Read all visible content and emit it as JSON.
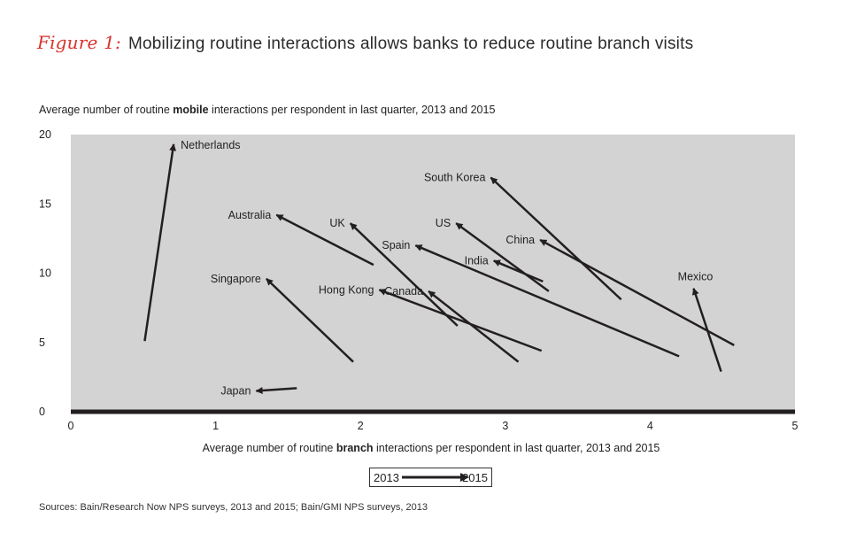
{
  "header": {
    "figure_label": "Figure 1:",
    "title": "Mobilizing routine interactions allows banks to reduce routine branch visits"
  },
  "legend": {
    "from": "2013",
    "to": "2015"
  },
  "source": "Sources: Bain/Research Now NPS surveys, 2013 and 2015; Bain/GMI NPS surveys, 2013",
  "chart_data": {
    "type": "arrow-scatter",
    "title": "Mobilizing routine interactions allows banks to reduce routine branch visits",
    "ylabel_parts": [
      "Average number of routine ",
      "mobile",
      " interactions per respondent in last quarter, 2013 and 2015"
    ],
    "xlabel_parts": [
      "Average number of routine ",
      "branch",
      " interactions per respondent in last quarter, 2013 and 2015"
    ],
    "xlim": [
      0,
      5
    ],
    "ylim": [
      0,
      20
    ],
    "xticks": [
      "0",
      "1",
      "2",
      "3",
      "4",
      "5"
    ],
    "yticks": [
      "0",
      "5",
      "10",
      "15",
      "20"
    ],
    "grid": false,
    "background": "#d3d3d4",
    "arrow_color": "#231f20",
    "series": [
      {
        "name": "Netherlands",
        "x2013": 0.51,
        "y2013": 5.1,
        "x2015": 0.71,
        "y2015": 19.3
      },
      {
        "name": "Australia",
        "x2013": 2.09,
        "y2013": 10.6,
        "x2015": 1.42,
        "y2015": 14.2
      },
      {
        "name": "UK",
        "x2013": 2.67,
        "y2013": 6.2,
        "x2015": 1.93,
        "y2015": 13.6
      },
      {
        "name": "US",
        "x2013": 3.3,
        "y2013": 8.7,
        "x2015": 2.66,
        "y2015": 13.6
      },
      {
        "name": "South Korea",
        "x2013": 3.8,
        "y2013": 8.1,
        "x2015": 2.9,
        "y2015": 16.9
      },
      {
        "name": "Spain",
        "x2013": 4.2,
        "y2013": 4.0,
        "x2015": 2.38,
        "y2015": 12.0
      },
      {
        "name": "China",
        "x2013": 4.58,
        "y2013": 4.8,
        "x2015": 3.24,
        "y2015": 12.4
      },
      {
        "name": "India",
        "x2013": 3.26,
        "y2013": 9.4,
        "x2015": 2.92,
        "y2015": 10.9
      },
      {
        "name": "Singapore",
        "x2013": 1.95,
        "y2013": 3.6,
        "x2015": 1.35,
        "y2015": 9.6
      },
      {
        "name": "Hong Kong",
        "x2013": 3.25,
        "y2013": 4.4,
        "x2015": 2.13,
        "y2015": 8.8
      },
      {
        "name": "Canada",
        "x2013": 3.09,
        "y2013": 3.6,
        "x2015": 2.47,
        "y2015": 8.7
      },
      {
        "name": "Mexico",
        "x2013": 4.49,
        "y2013": 2.9,
        "x2015": 4.3,
        "y2015": 8.9
      },
      {
        "name": "Japan",
        "x2013": 1.56,
        "y2013": 1.7,
        "x2015": 1.28,
        "y2015": 1.5
      }
    ]
  }
}
